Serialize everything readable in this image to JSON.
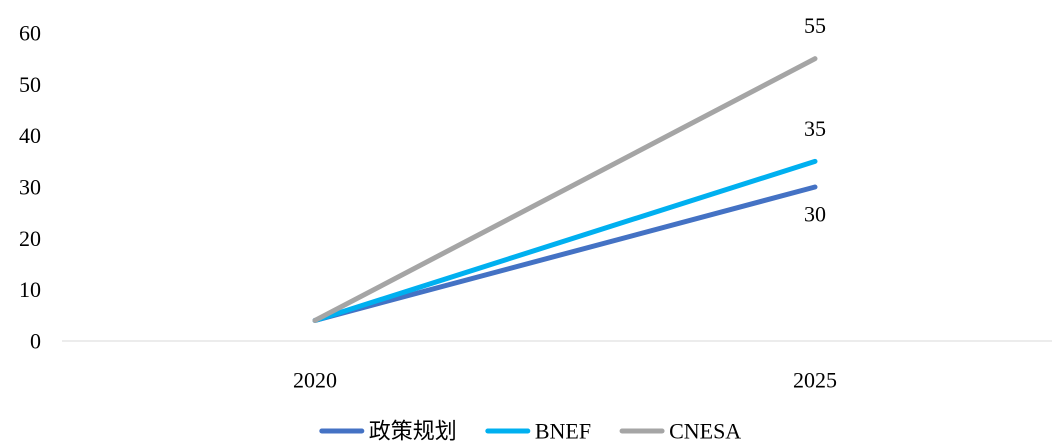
{
  "chart_data": {
    "type": "line",
    "categories": [
      "2020",
      "2025"
    ],
    "ylim": [
      0,
      60
    ],
    "yticks": [
      0,
      10,
      20,
      30,
      40,
      50,
      60
    ],
    "grid": false,
    "legend_position": "bottom",
    "series": [
      {
        "name": "政策规划",
        "values": [
          4,
          30
        ],
        "color": "#4472c4",
        "labels": [
          "",
          "30"
        ],
        "label_side": "below"
      },
      {
        "name": "BNEF",
        "values": [
          4,
          35
        ],
        "color": "#00b0f0",
        "labels": [
          "",
          "35"
        ],
        "label_side": "above"
      },
      {
        "name": "CNESA",
        "values": [
          4,
          55
        ],
        "color": "#a5a5a5",
        "labels": [
          "",
          "55"
        ],
        "label_side": "above"
      }
    ]
  }
}
